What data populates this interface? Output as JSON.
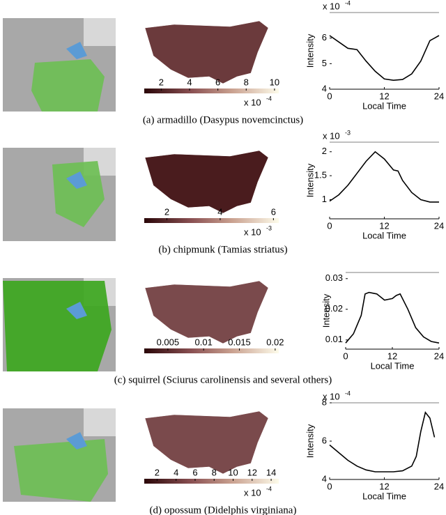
{
  "panels": [
    {
      "caption": "(a) armadillo (Dasypus novemcinctus)",
      "colorbar": {
        "lim": [
          0.8,
          10.3
        ],
        "ticks": [
          2,
          4,
          6,
          8,
          10
        ],
        "exponent_base": "x 10",
        "exponent": "-4"
      },
      "chart": {
        "type": "line",
        "xlabel": "Local Time",
        "ylabel": "Intensity",
        "exponent_base": "x 10",
        "exponent": "-4",
        "x": [
          0,
          2,
          4,
          6,
          8,
          10,
          12,
          14,
          16,
          18,
          20,
          22,
          23,
          24
        ],
        "values": [
          6.1,
          5.85,
          5.6,
          5.55,
          5.1,
          4.7,
          4.4,
          4.35,
          4.38,
          4.6,
          5.1,
          5.9,
          6.0,
          6.1
        ],
        "xlim": [
          0,
          24
        ],
        "xticks": [
          0,
          12,
          24
        ],
        "ylim": [
          4,
          7
        ],
        "yticks": [
          4,
          5,
          6
        ]
      }
    },
    {
      "caption": "(b) chipmunk (Tamias striatus)",
      "colorbar": {
        "lim": [
          1.15,
          6.2
        ],
        "ticks": [
          2,
          4,
          6
        ],
        "exponent_base": "x 10",
        "exponent": "-3"
      },
      "chart": {
        "type": "line",
        "xlabel": "Local Time",
        "ylabel": "Intensity",
        "exponent_base": "x 10",
        "exponent": "-3",
        "x": [
          0,
          2,
          4,
          6,
          8,
          10,
          12,
          14,
          15,
          16,
          18,
          20,
          22,
          24
        ],
        "values": [
          0.97,
          1.1,
          1.3,
          1.55,
          1.8,
          2.0,
          1.85,
          1.62,
          1.6,
          1.4,
          1.15,
          1.0,
          0.95,
          0.95
        ],
        "xlim": [
          0,
          24
        ],
        "xticks": [
          0,
          12,
          24
        ],
        "ylim": [
          0.6,
          2.2
        ],
        "yticks": [
          1,
          1.5,
          2
        ]
      }
    },
    {
      "caption": "(c) squirrel (Sciurus carolinensis and several others)",
      "colorbar": {
        "lim": [
          0.0017,
          0.0205
        ],
        "ticks": [
          0.005,
          0.01,
          0.015,
          0.02
        ]
      },
      "chart": {
        "type": "line",
        "xlabel": "Local Time",
        "ylabel": "Intensity",
        "x": [
          0,
          2,
          4,
          5,
          6,
          8,
          10,
          12,
          13,
          14,
          16,
          18,
          20,
          22,
          24
        ],
        "values": [
          0.009,
          0.012,
          0.018,
          0.025,
          0.0255,
          0.025,
          0.023,
          0.0235,
          0.0245,
          0.025,
          0.02,
          0.014,
          0.011,
          0.0095,
          0.009
        ],
        "xlim": [
          0,
          24
        ],
        "xticks": [
          0,
          12,
          24
        ],
        "ylim": [
          0.007,
          0.032
        ],
        "yticks": [
          0.01,
          0.02,
          0.03
        ]
      }
    },
    {
      "caption": "(d) opossum (Didelphis virginiana)",
      "colorbar": {
        "lim": [
          0.65,
          14.8
        ],
        "ticks": [
          2,
          4,
          6,
          8,
          10,
          12,
          14
        ],
        "exponent_base": "x 10",
        "exponent": "-4"
      },
      "chart": {
        "type": "line",
        "xlabel": "Local Time",
        "ylabel": "Intensity",
        "exponent_base": "x 10",
        "exponent": "-4",
        "x": [
          0,
          2,
          4,
          6,
          8,
          10,
          12,
          14,
          16,
          18,
          19,
          20,
          21,
          22,
          23
        ],
        "values": [
          5.8,
          5.4,
          5.0,
          4.7,
          4.5,
          4.4,
          4.4,
          4.4,
          4.45,
          4.7,
          5.2,
          6.5,
          7.5,
          7.2,
          6.2
        ],
        "xlim": [
          0,
          24
        ],
        "xticks": [
          0,
          12,
          24
        ],
        "ylim": [
          4,
          8
        ],
        "yticks": [
          4,
          6,
          8
        ]
      }
    }
  ]
}
